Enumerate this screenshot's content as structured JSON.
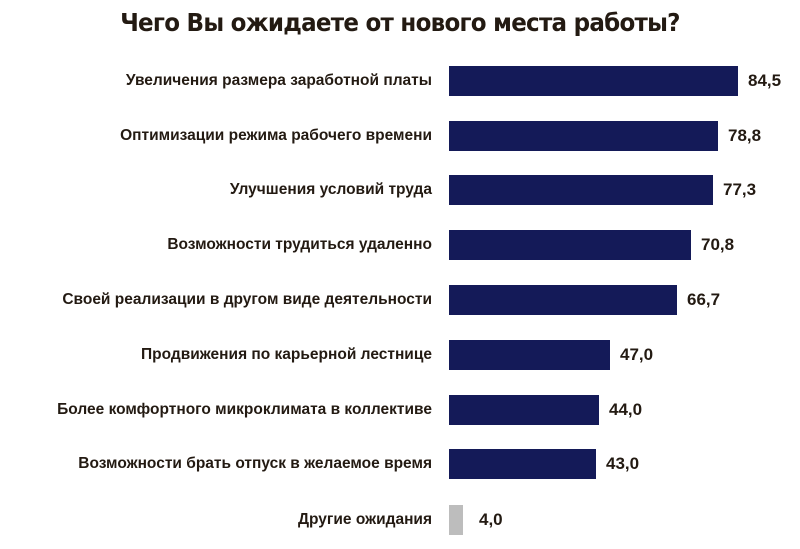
{
  "title": "Чего Вы ожидаете от нового места работы?",
  "colors": {
    "primary_bar": "#141a58",
    "other_bar": "#bdbdbd",
    "text": "#231a12"
  },
  "chart_data": {
    "type": "bar",
    "orientation": "horizontal",
    "title": "Чего Вы ожидаете от нового места работы?",
    "xlabel": "",
    "ylabel": "",
    "grid": false,
    "legend": null,
    "categories": [
      "Увеличения размера заработной платы",
      "Оптимизации режима рабочего времени",
      "Улучшения условий труда",
      "Возможности трудиться удаленно",
      "Своей реализации в другом виде деятельности",
      "Продвижения по карьерной лестнице",
      "Более комфортного микроклимата в коллективе",
      "Возможности брать отпуск в желаемое время",
      "Другие ожидания"
    ],
    "values": [
      84.5,
      78.8,
      77.3,
      70.8,
      66.7,
      47.0,
      44.0,
      43.0,
      4.0
    ],
    "value_labels": [
      "84,5",
      "78,8",
      "77,3",
      "70,8",
      "66,7",
      "47,0",
      "44,0",
      "43,0",
      "4,0"
    ]
  }
}
